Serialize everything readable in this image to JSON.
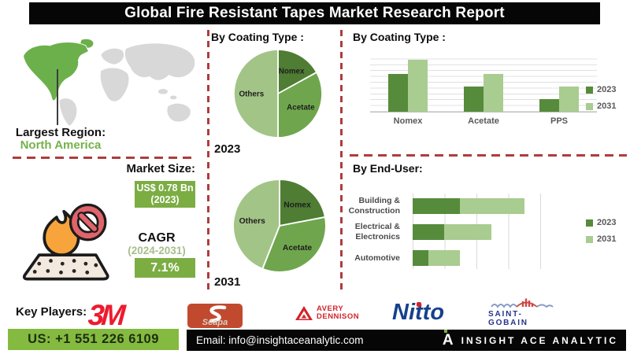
{
  "title": "Global Fire Resistant Tapes Market Research Report",
  "region": {
    "label": "Largest Region:",
    "value": "North America"
  },
  "market": {
    "size_label": "Market Size:",
    "size_value": "US$ 0.78 Bn",
    "size_year": "(2023)",
    "cagr_label": "CAGR",
    "cagr_period": "(2024-2031)",
    "cagr_value": "7.1%"
  },
  "sections": {
    "pie_header": "By Coating Type :",
    "bar_header": "By Coating Type :",
    "enduser_header": "By End-User:"
  },
  "key_players": {
    "label": "Key Players:",
    "logos": {
      "m3": "3M",
      "scapa": "Scapa",
      "avery_line1": "AVERY",
      "avery_line2": "DENNISON",
      "nitto": "Nitto",
      "saint_gobain": "SAINT-GOBAIN"
    }
  },
  "contact": {
    "phone": "US: +1 551 226 6109",
    "email": "Email: info@insightaceanalytic.com"
  },
  "brand": {
    "mark": "A",
    "name": "INSIGHT ACE ANALYTIC"
  },
  "colors": {
    "dark_green": "#4E7D33",
    "mid_green": "#6FA64D",
    "light_green": "#A3C487",
    "bar_dark": "#568B3B",
    "bar_light": "#A9CC90",
    "box_green": "#7BAD43",
    "bottom_green": "#85BA40",
    "dashed_red": "#AF3C3C",
    "map_green": "#6CB04B",
    "map_gray": "#D8D8D8",
    "text_green": "#76B04B"
  },
  "chart_data": [
    {
      "id": "coating-pie-2023",
      "type": "pie",
      "year_label": "2023",
      "labels": [
        "Nomex",
        "Acetate",
        "Others"
      ],
      "values": [
        17,
        33,
        50
      ],
      "colors": [
        "#4E7D33",
        "#6FA64D",
        "#A3C487"
      ]
    },
    {
      "id": "coating-pie-2031",
      "type": "pie",
      "year_label": "2031",
      "labels": [
        "Nomex",
        "Acetate",
        "Others"
      ],
      "values": [
        22,
        34,
        44
      ],
      "colors": [
        "#4E7D33",
        "#6FA64D",
        "#A3C487"
      ]
    },
    {
      "id": "coating-bars",
      "type": "bar",
      "title": "By Coating Type :",
      "categories": [
        "Nomex",
        "Acetate",
        "PPS"
      ],
      "series": [
        {
          "name": "2023",
          "values": [
            65,
            43,
            21
          ]
        },
        {
          "name": "2031",
          "values": [
            89,
            65,
            43
          ]
        }
      ],
      "series_colors": [
        "#568B3B",
        "#A9CC90"
      ],
      "ylim": [
        0,
        100
      ],
      "grid": true,
      "legend_position": "right"
    },
    {
      "id": "enduser-bars",
      "type": "bar",
      "orientation": "horizontal",
      "stacked": true,
      "title": "By End-User:",
      "categories": [
        "Building & Construction",
        "Electrical & Electronics",
        "Automotive"
      ],
      "series": [
        {
          "name": "2023",
          "values": [
            30,
            20,
            10
          ]
        },
        {
          "name": "2031",
          "values": [
            41,
            30,
            20
          ]
        }
      ],
      "series_colors": [
        "#568B3B",
        "#A9CC90"
      ],
      "xlim": [
        0,
        80
      ],
      "grid": true,
      "legend_position": "right"
    }
  ]
}
